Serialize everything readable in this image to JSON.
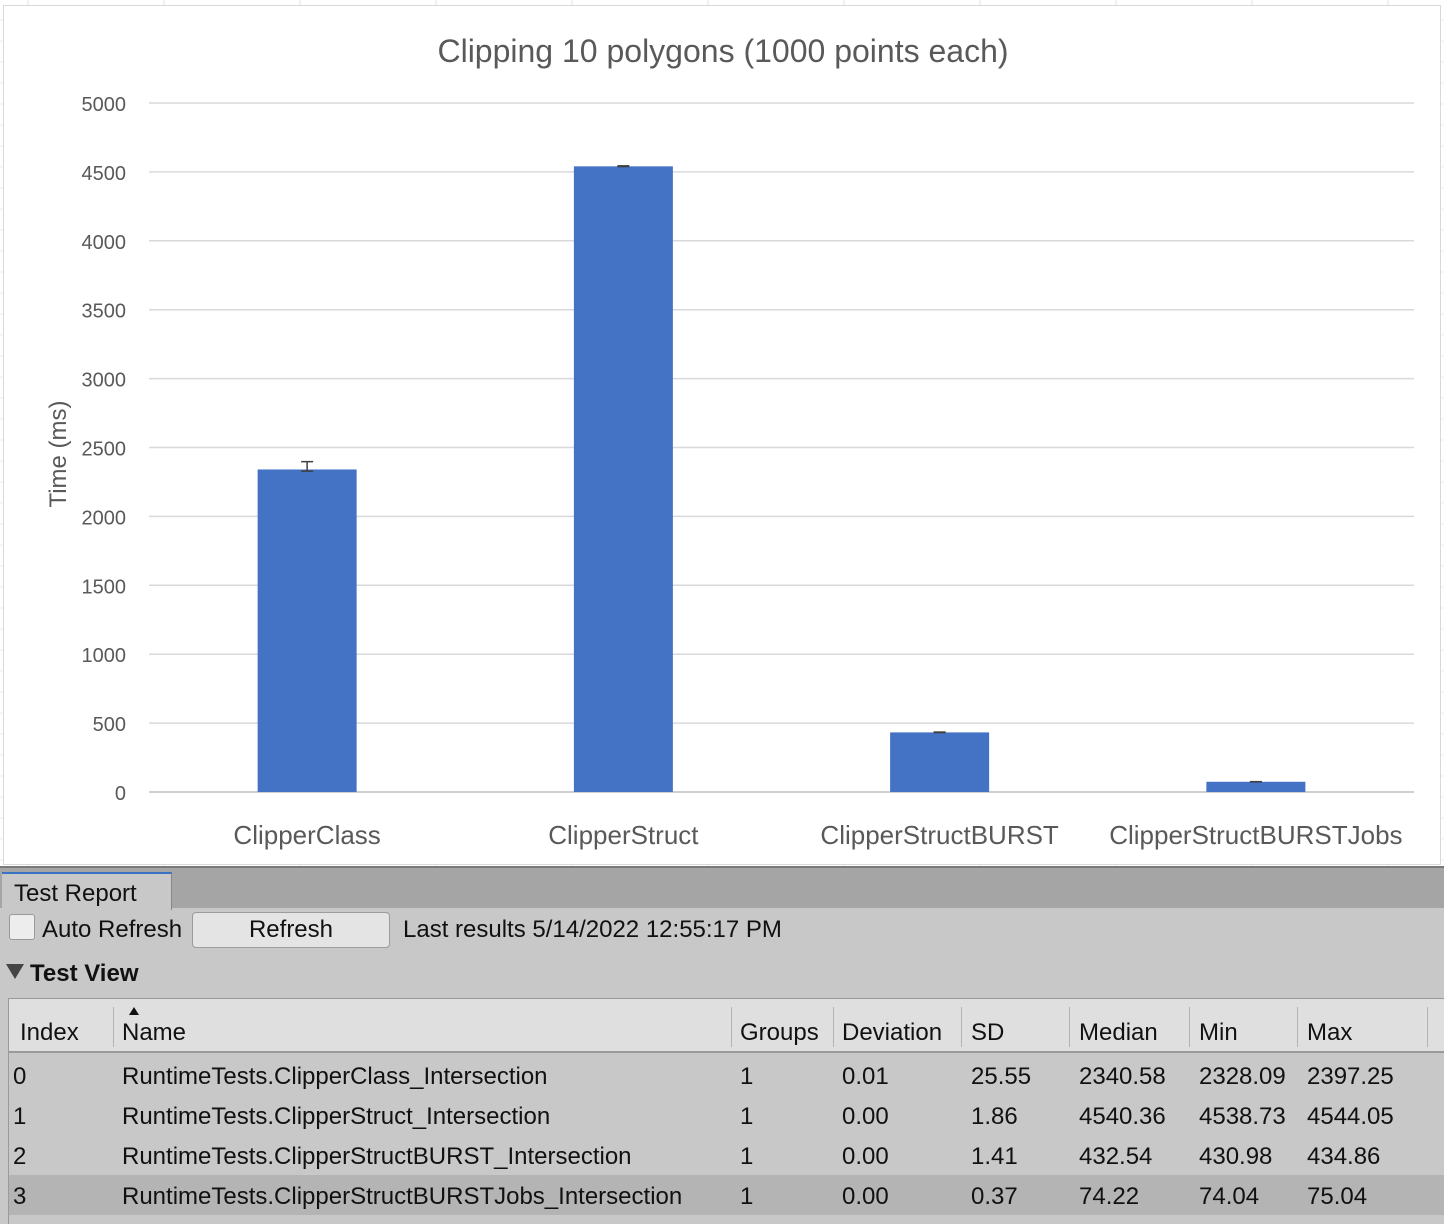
{
  "chart_data": {
    "type": "bar",
    "title": "Clipping 10 polygons (1000 points each)",
    "xlabel": "",
    "ylabel": "Time (ms)",
    "categories": [
      "ClipperClass",
      "ClipperStruct",
      "ClipperStructBURST",
      "ClipperStructBURSTJobs"
    ],
    "values": [
      2340.58,
      4540.36,
      432.54,
      74.22
    ],
    "error_low": [
      2328.09,
      4538.73,
      430.98,
      74.04
    ],
    "error_high": [
      2397.25,
      4544.05,
      434.86,
      75.04
    ],
    "ylim": [
      0,
      5000
    ],
    "yticks": [
      "0",
      "500",
      "1000",
      "1500",
      "2000",
      "2500",
      "3000",
      "3500",
      "4000",
      "4500",
      "5000"
    ],
    "grid": true,
    "bar_color": "#4472c4",
    "grid_color": "#d9d9d9"
  },
  "report": {
    "tab_label": "Test Report",
    "auto_refresh_label": "Auto Refresh",
    "auto_refresh_checked": false,
    "refresh_button": "Refresh",
    "last_results": "Last results 5/14/2022 12:55:17 PM",
    "test_view_label": "Test View",
    "columns": [
      "Index",
      "Name",
      "Groups",
      "Deviation",
      "SD",
      "Median",
      "Min",
      "Max"
    ],
    "rows": [
      [
        "0",
        "RuntimeTests.ClipperClass_Intersection",
        "1",
        "0.01",
        "25.55",
        "2340.58",
        "2328.09",
        "2397.25"
      ],
      [
        "1",
        "RuntimeTests.ClipperStruct_Intersection",
        "1",
        "0.00",
        "1.86",
        "4540.36",
        "4538.73",
        "4544.05"
      ],
      [
        "2",
        "RuntimeTests.ClipperStructBURST_Intersection",
        "1",
        "0.00",
        "1.41",
        "432.54",
        "430.98",
        "434.86"
      ],
      [
        "3",
        "RuntimeTests.ClipperStructBURSTJobs_Intersection",
        "1",
        "0.00",
        "0.37",
        "74.22",
        "74.04",
        "75.04"
      ]
    ],
    "selected_row": 3
  }
}
